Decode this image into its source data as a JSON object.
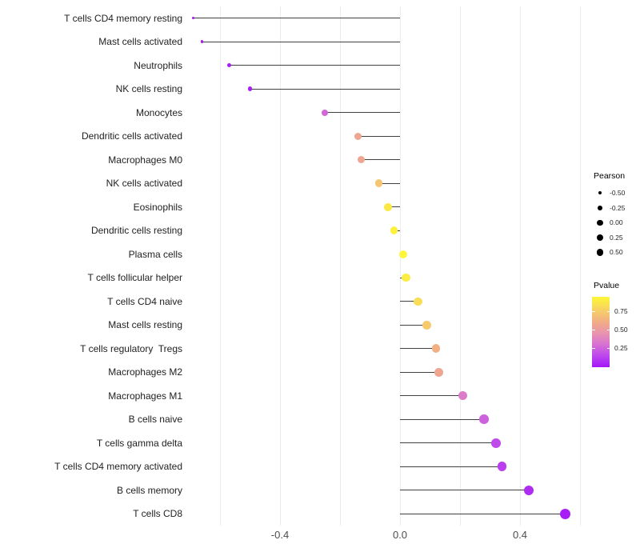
{
  "chart_data": {
    "type": "lollipop",
    "orientation": "horizontal",
    "title": "",
    "xlabel": "",
    "ylabel": "",
    "categories": [
      "T cells CD4 memory resting",
      "Mast cells activated",
      "Neutrophils",
      "NK cells resting",
      "Monocytes",
      "Dendritic cells activated",
      "Macrophages M0",
      "NK cells activated",
      "Eosinophils",
      "Dendritic cells resting",
      "Plasma cells",
      "T cells follicular helper",
      "T cells CD4 naive",
      "Mast cells resting",
      "T cells regulatory  Tregs",
      "Macrophages M2",
      "Macrophages M1",
      "B cells naive",
      "T cells gamma delta",
      "T cells CD4 memory activated",
      "B cells memory",
      "T cells CD8"
    ],
    "series": [
      {
        "name": "Pearson",
        "values": [
          -0.69,
          -0.66,
          -0.57,
          -0.5,
          -0.25,
          -0.14,
          -0.13,
          -0.07,
          -0.04,
          -0.02,
          0.01,
          0.02,
          0.06,
          0.09,
          0.12,
          0.13,
          0.21,
          0.28,
          0.32,
          0.34,
          0.43,
          0.55
        ]
      },
      {
        "name": "Pvalue",
        "values": [
          0.01,
          0.01,
          0.02,
          0.03,
          0.27,
          0.57,
          0.57,
          0.72,
          0.88,
          0.92,
          0.95,
          0.9,
          0.83,
          0.74,
          0.62,
          0.57,
          0.35,
          0.25,
          0.17,
          0.13,
          0.07,
          0.03
        ]
      }
    ],
    "baseline": 0,
    "xlim": [
      -0.72,
      0.62
    ],
    "x_ticks": [
      {
        "label": "-0.4",
        "value": -0.4
      },
      {
        "label": "0.0",
        "value": 0.0
      },
      {
        "label": "0.4",
        "value": 0.4
      }
    ],
    "gridlines": [
      -0.6,
      -0.4,
      -0.2,
      0.0,
      0.2,
      0.4,
      0.6
    ],
    "grid": "vertical-only",
    "legend_position": "right"
  },
  "legend_pearson": {
    "title": "Pearson",
    "entries": [
      {
        "label": "-0.50",
        "size": 4.3
      },
      {
        "label": "-0.25",
        "size": 5.7
      },
      {
        "label": "0.00",
        "size": 7.3
      },
      {
        "label": "0.25",
        "size": 8.0
      },
      {
        "label": "0.50",
        "size": 8.7
      }
    ]
  },
  "legend_pvalue": {
    "title": "Pvalue",
    "ticks": [
      {
        "label": "0.75",
        "value": 0.75
      },
      {
        "label": "0.50",
        "value": 0.5
      },
      {
        "label": "0.25",
        "value": 0.25
      }
    ],
    "range": [
      0.0,
      0.95
    ],
    "gradient_stops": [
      [
        0.0,
        "#a315f7"
      ],
      [
        0.15,
        "#bc46ee"
      ],
      [
        0.3,
        "#d66fd4"
      ],
      [
        0.45,
        "#e892b2"
      ],
      [
        0.6,
        "#f0ab87"
      ],
      [
        0.75,
        "#f6cb6b"
      ],
      [
        0.9,
        "#fbed41"
      ],
      [
        0.95,
        "#fdf63b"
      ]
    ]
  },
  "colors": {
    "stem": "#404040",
    "grid": "#ececec",
    "axis_text": "#4d4d4d",
    "category_text": "#1f1f1f",
    "legend_dot": "#000000",
    "background": "#ffffff"
  }
}
